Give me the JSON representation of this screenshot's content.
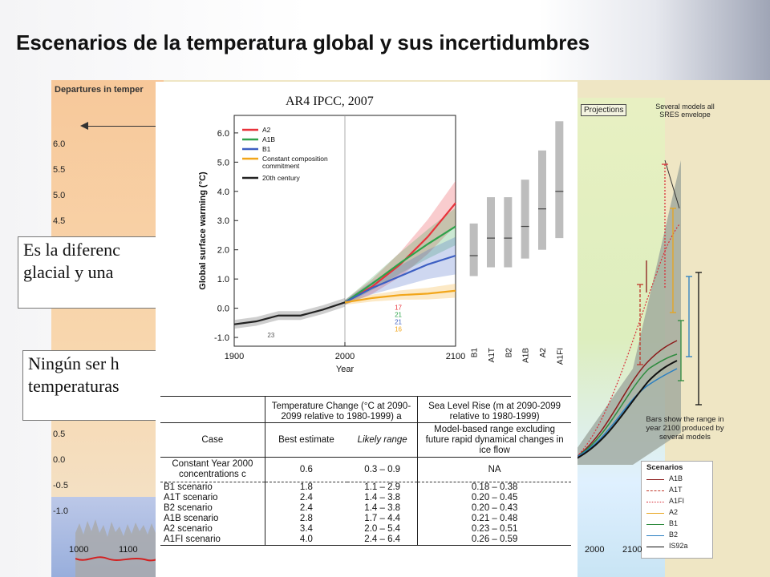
{
  "slide": {
    "title": "Escenarios de la temperatura global y sus incertidumbres"
  },
  "background_figure": {
    "header": "Departures in temper",
    "y_ticks": [
      "6.0",
      "5.5",
      "5.0",
      "4.5",
      "0.5",
      "0.0",
      "-0.5",
      "-1.0"
    ],
    "x_ticks_left": [
      "1000",
      "1100"
    ],
    "x_ticks_right": [
      "2000",
      "2100"
    ],
    "projections_label": "Projections",
    "several_models_label": "Several models all SRES envelope",
    "bars_label": "Bars show the range in year 2100 produced by several models",
    "legend": {
      "title": "Scenarios",
      "items": [
        {
          "name": "A1B",
          "color": "#8b1a1a",
          "style": "solid"
        },
        {
          "name": "A1T",
          "color": "#c0392b",
          "style": "dashed"
        },
        {
          "name": "A1FI",
          "color": "#d9303a",
          "style": "dotted"
        },
        {
          "name": "A2",
          "color": "#e8a41d",
          "style": "solid"
        },
        {
          "name": "B1",
          "color": "#2e8b3e",
          "style": "solid"
        },
        {
          "name": "B2",
          "color": "#2a7fc1",
          "style": "solid"
        },
        {
          "name": "IS92a",
          "color": "#111111",
          "style": "solid"
        }
      ]
    }
  },
  "callouts": [
    {
      "line1": "Es la diferenc",
      "line2": "glacial y una"
    },
    {
      "line1": "Ningún ser h",
      "line2": "temperaturas"
    }
  ],
  "chart_data": {
    "type": "line",
    "citation": "AR4 IPCC, 2007",
    "xlabel": "Year",
    "ylabel": "Global surface warming (°C)",
    "x_ticks": [
      "1900",
      "2000",
      "2100"
    ],
    "y_ticks": [
      "-1.0",
      "0.0",
      "1.0",
      "2.0",
      "3.0",
      "4.0",
      "5.0",
      "6.0"
    ],
    "xlim": [
      1900,
      2100
    ],
    "ylim": [
      -1.3,
      6.6
    ],
    "series": [
      {
        "name": "A2",
        "color": "#e8333b",
        "x": [
          2000,
          2025,
          2050,
          2075,
          2100
        ],
        "y": [
          0.2,
          0.75,
          1.5,
          2.45,
          3.6
        ]
      },
      {
        "name": "A1B",
        "color": "#2ea24a",
        "x": [
          2000,
          2025,
          2050,
          2075,
          2100
        ],
        "y": [
          0.2,
          0.85,
          1.55,
          2.2,
          2.8
        ]
      },
      {
        "name": "B1",
        "color": "#3d5fc2",
        "x": [
          2000,
          2025,
          2050,
          2075,
          2100
        ],
        "y": [
          0.2,
          0.7,
          1.1,
          1.5,
          1.8
        ]
      },
      {
        "name": "Constant composition commitment",
        "color": "#f2a61a",
        "x": [
          2000,
          2025,
          2050,
          2075,
          2100
        ],
        "y": [
          0.2,
          0.35,
          0.45,
          0.5,
          0.6
        ]
      },
      {
        "name": "20th century",
        "color": "#222222",
        "x": [
          1900,
          1920,
          1940,
          1960,
          1980,
          2000
        ],
        "y": [
          -0.55,
          -0.45,
          -0.25,
          -0.25,
          -0.05,
          0.2
        ]
      }
    ],
    "run_counts": [
      {
        "value": "17",
        "color": "#e8333b"
      },
      {
        "value": "21",
        "color": "#2ea24a"
      },
      {
        "value": "21",
        "color": "#3d5fc2"
      },
      {
        "value": "16",
        "color": "#f2a61a"
      }
    ],
    "historic_count": "23",
    "bars_2100": [
      {
        "name": "B1",
        "low": 1.1,
        "best": 1.8,
        "high": 2.9
      },
      {
        "name": "A1T",
        "low": 1.4,
        "best": 2.4,
        "high": 3.8
      },
      {
        "name": "B2",
        "low": 1.4,
        "best": 2.4,
        "high": 3.8
      },
      {
        "name": "A1B",
        "low": 1.7,
        "best": 2.8,
        "high": 4.4
      },
      {
        "name": "A2",
        "low": 2.0,
        "best": 3.4,
        "high": 5.4
      },
      {
        "name": "A1FI",
        "low": 2.4,
        "best": 4.0,
        "high": 6.4
      }
    ]
  },
  "table": {
    "header_temp": "Temperature Change (°C at 2090-2099 relative to 1980-1999) a",
    "header_sea": "Sea Level Rise (m at 2090-2099 relative to 1980-1999)",
    "col_case": "Case",
    "col_best": "Best estimate",
    "col_likely": "Likely range",
    "col_model": "Model-based range excluding future rapid dynamical changes in ice flow",
    "rows": [
      {
        "case": "Constant Year 2000 concentrations c",
        "best": "0.6",
        "likely": "0.3 – 0.9",
        "sea": "NA"
      },
      {
        "case": "B1 scenario",
        "best": "1.8",
        "likely": "1.1 – 2.9",
        "sea": "0.18 – 0.38"
      },
      {
        "case": "A1T scenario",
        "best": "2.4",
        "likely": "1.4 – 3.8",
        "sea": "0.20 – 0.45"
      },
      {
        "case": "B2 scenario",
        "best": "2.4",
        "likely": "1.4 – 3.8",
        "sea": "0.20 – 0.43"
      },
      {
        "case": "A1B scenario",
        "best": "2.8",
        "likely": "1.7 – 4.4",
        "sea": "0.21 – 0.48"
      },
      {
        "case": "A2 scenario",
        "best": "3.4",
        "likely": "2.0 – 5.4",
        "sea": "0.23 – 0.51"
      },
      {
        "case": "A1FI scenario",
        "best": "4.0",
        "likely": "2.4 – 6.4",
        "sea": "0.26 – 0.59"
      }
    ]
  }
}
